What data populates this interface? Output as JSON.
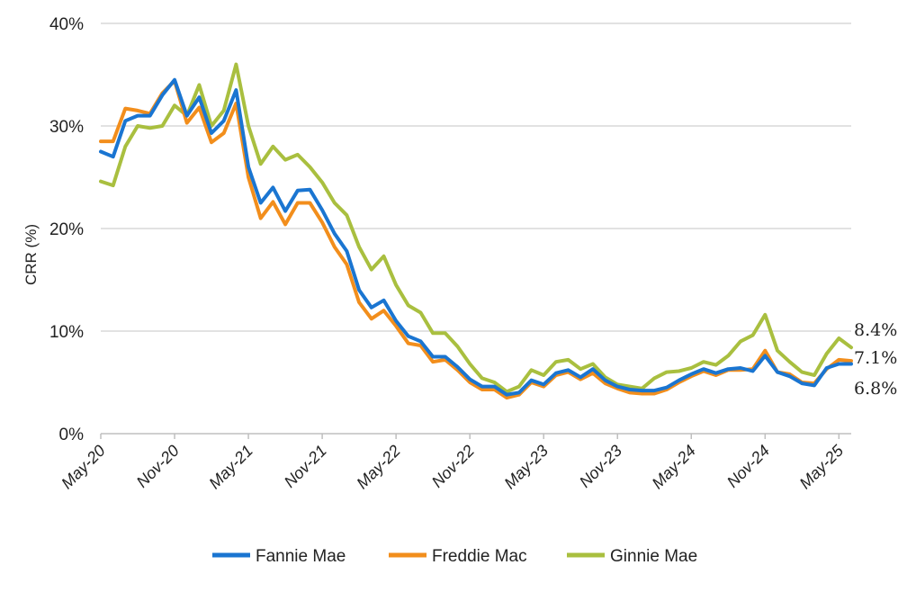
{
  "chart_data": {
    "type": "line",
    "title": "",
    "xlabel": "",
    "ylabel": "CRR (%)",
    "ylim": [
      0,
      40
    ],
    "y_ticks": [
      "0%",
      "10%",
      "20%",
      "30%",
      "40%"
    ],
    "y_tick_values": [
      0,
      10,
      20,
      30,
      40
    ],
    "x_tick_labels": [
      "May-20",
      "Nov-20",
      "May-21",
      "Nov-21",
      "May-22",
      "Nov-22",
      "May-23",
      "Nov-23",
      "May-24",
      "Nov-24",
      "May-25"
    ],
    "x_tick_index": [
      0,
      6,
      12,
      18,
      24,
      30,
      36,
      42,
      48,
      54,
      60
    ],
    "grid": true,
    "legend_position": "bottom",
    "series": [
      {
        "name": "Fannie Mae",
        "color": "#1a75d1",
        "end_label": "6.8%",
        "values": [
          27.5,
          27,
          30.5,
          31,
          31,
          33,
          34.5,
          31,
          32.8,
          29.3,
          30.5,
          33.5,
          26,
          22.5,
          24,
          21.7,
          23.7,
          23.8,
          21.8,
          19.5,
          17.8,
          14,
          12.3,
          13,
          11,
          9.5,
          9,
          7.5,
          7.5,
          6.5,
          5.3,
          4.6,
          4.6,
          3.8,
          4,
          5.2,
          4.8,
          5.9,
          6.2,
          5.5,
          6.3,
          5.2,
          4.6,
          4.3,
          4.2,
          4.2,
          4.5,
          5.2,
          5.8,
          6.3,
          5.9,
          6.3,
          6.4,
          6.1,
          7.6,
          6,
          5.6,
          4.9,
          4.7,
          6.4,
          6.8,
          6.8
        ]
      },
      {
        "name": "Freddie Mac",
        "color": "#f28e1c",
        "end_label": "7.1%",
        "values": [
          28.5,
          28.5,
          31.7,
          31.5,
          31.2,
          33.2,
          34.4,
          30.3,
          31.8,
          28.4,
          29.3,
          32.2,
          25,
          21,
          22.6,
          20.4,
          22.5,
          22.5,
          20.6,
          18.2,
          16.5,
          12.8,
          11.2,
          12,
          10.5,
          8.8,
          8.6,
          7,
          7.2,
          6.2,
          5,
          4.3,
          4.3,
          3.5,
          3.8,
          5,
          4.6,
          5.7,
          6,
          5.3,
          5.9,
          4.9,
          4.4,
          4,
          3.9,
          3.9,
          4.3,
          5,
          5.6,
          6.1,
          5.7,
          6.2,
          6.2,
          6.3,
          8.1,
          6,
          5.8,
          5,
          4.9,
          6.3,
          7.2,
          7.1
        ]
      },
      {
        "name": "Ginnie Mae",
        "color": "#a9bf3f",
        "end_label": "8.4%",
        "values": [
          24.6,
          24.2,
          28,
          30,
          29.8,
          30,
          32,
          31,
          34,
          30,
          31.5,
          36,
          30,
          26.3,
          28,
          26.7,
          27.2,
          26,
          24.5,
          22.5,
          21.3,
          18.2,
          16,
          17.3,
          14.5,
          12.5,
          11.8,
          9.8,
          9.8,
          8.5,
          6.8,
          5.4,
          5,
          4.1,
          4.6,
          6.2,
          5.7,
          7,
          7.2,
          6.3,
          6.8,
          5.5,
          4.8,
          4.6,
          4.4,
          5.4,
          6,
          6.1,
          6.4,
          7,
          6.7,
          7.6,
          9,
          9.6,
          11.6,
          8.1,
          7,
          6,
          5.7,
          7.8,
          9.3,
          8.4
        ]
      }
    ]
  }
}
